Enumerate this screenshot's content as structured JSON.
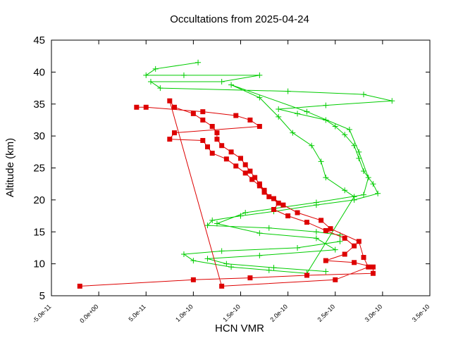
{
  "chart_data": {
    "type": "line",
    "title": "Occultations from 2025-04-24",
    "xlabel": "HCN VMR",
    "ylabel": "Altitude (km)",
    "xlim": [
      -5e-11,
      3.5e-10
    ],
    "ylim": [
      5,
      45
    ],
    "x_ticks": [
      -5e-11,
      0,
      5e-11,
      1e-10,
      1.5e-10,
      2e-10,
      2.5e-10,
      3e-10,
      3.5e-10
    ],
    "x_tick_labels": [
      "-5.0e-11",
      "0.0e+00",
      "5.0e-11",
      "1.0e-10",
      "1.5e-10",
      "2.0e-10",
      "2.5e-10",
      "3.0e-10",
      "3.5e-10"
    ],
    "y_ticks": [
      5,
      10,
      15,
      20,
      25,
      30,
      35,
      40,
      45
    ],
    "y_tick_labels": [
      "5",
      "10",
      "15",
      "20",
      "25",
      "30",
      "35",
      "40",
      "45"
    ],
    "grid": false,
    "legend": false,
    "colors": {
      "green": "#00cc00",
      "red": "#dd0000"
    },
    "series": [
      {
        "color": "#00cc00",
        "marker": "plus",
        "points": [
          [
            1.05e-10,
            41.5
          ],
          [
            6e-11,
            40.5
          ],
          [
            5e-11,
            39.5
          ],
          [
            9e-11,
            39.5
          ],
          [
            1.7e-10,
            39.5
          ],
          [
            1.3e-10,
            38.5
          ],
          [
            5.5e-11,
            38.5
          ],
          [
            6.5e-11,
            37.5
          ],
          [
            2e-10,
            37.0
          ],
          [
            2.8e-10,
            36.5
          ],
          [
            3.1e-10,
            35.5
          ],
          [
            2.4e-10,
            34.8
          ],
          [
            1.9e-10,
            34.2
          ],
          [
            2.1e-10,
            33.5
          ],
          [
            2.4e-10,
            32.5
          ],
          [
            2.5e-10,
            31.5
          ],
          [
            2.6e-10,
            30.2
          ],
          [
            2.7e-10,
            28.5
          ],
          [
            2.75e-10,
            26.5
          ],
          [
            2.8e-10,
            24.5
          ],
          [
            2.9e-10,
            22.5
          ],
          [
            2.95e-10,
            21.0
          ],
          [
            2.7e-10,
            20.0
          ],
          [
            2.3e-10,
            19.2
          ],
          [
            1.85e-10,
            18.2
          ],
          [
            1.5e-10,
            17.5
          ],
          [
            1.2e-10,
            16.8
          ],
          [
            1.15e-10,
            16.0
          ],
          [
            1.8e-10,
            15.6
          ],
          [
            2.3e-10,
            15.0
          ],
          [
            2.55e-10,
            14.5
          ],
          [
            2.55e-10,
            13.5
          ],
          [
            2.1e-10,
            12.5
          ],
          [
            1.3e-10,
            12.0
          ],
          [
            9e-11,
            11.5
          ],
          [
            1e-10,
            10.5
          ],
          [
            1.4e-10,
            9.5
          ],
          [
            1.8e-10,
            9.0
          ],
          [
            2.2e-10,
            8.5
          ],
          [
            2.7e-10,
            20.5
          ],
          [
            2.6e-10,
            21.5
          ],
          [
            2.4e-10,
            23.5
          ],
          [
            2.35e-10,
            26.0
          ],
          [
            2.25e-10,
            28.5
          ],
          [
            2.05e-10,
            30.5
          ],
          [
            1.9e-10,
            33.0
          ],
          [
            1.7e-10,
            36.0
          ],
          [
            1.4e-10,
            38.0
          ],
          [
            2.2e-10,
            33.8
          ],
          [
            2.65e-10,
            31.0
          ],
          [
            2.75e-10,
            27.5
          ],
          [
            2.85e-10,
            23.5
          ],
          [
            2.8e-10,
            20.8
          ],
          [
            2.3e-10,
            19.6
          ],
          [
            1.55e-10,
            18.0
          ],
          [
            1.25e-10,
            16.3
          ],
          [
            1.7e-10,
            14.8
          ],
          [
            2.3e-10,
            14.0
          ],
          [
            2.5e-10,
            12.2
          ],
          [
            1.7e-10,
            11.3
          ],
          [
            1.15e-10,
            10.8
          ],
          [
            1.35e-10,
            10.0
          ],
          [
            1.85e-10,
            9.4
          ],
          [
            2.4e-10,
            8.8
          ]
        ]
      },
      {
        "color": "#dd0000",
        "marker": "square",
        "points": [
          [
            -2e-11,
            6.5
          ],
          [
            1e-10,
            7.5
          ],
          [
            1.6e-10,
            7.8
          ],
          [
            2.2e-10,
            8.2
          ],
          [
            2.9e-10,
            8.5
          ],
          [
            2.9e-10,
            9.5
          ],
          [
            2.7e-10,
            10.2
          ],
          [
            2.4e-10,
            10.5
          ],
          [
            2.6e-10,
            11.5
          ],
          [
            2.7e-10,
            12.8
          ],
          [
            2.6e-10,
            14.0
          ],
          [
            2.4e-10,
            15.2
          ],
          [
            2.2e-10,
            16.5
          ],
          [
            2e-10,
            17.5
          ],
          [
            1.85e-10,
            18.5
          ],
          [
            1.9e-10,
            19.5
          ],
          [
            1.8e-10,
            20.5
          ],
          [
            1.75e-10,
            21.5
          ],
          [
            1.7e-10,
            22.5
          ],
          [
            1.65e-10,
            23.5
          ],
          [
            1.6e-10,
            24.5
          ],
          [
            1.55e-10,
            25.5
          ],
          [
            1.5e-10,
            26.5
          ],
          [
            1.4e-10,
            27.5
          ],
          [
            1.3e-10,
            28.5
          ],
          [
            1.25e-10,
            29.5
          ],
          [
            1.25e-10,
            30.5
          ],
          [
            1.2e-10,
            31.5
          ],
          [
            1.1e-10,
            32.5
          ],
          [
            1e-10,
            33.5
          ],
          [
            8e-11,
            34.5
          ],
          [
            7.5e-11,
            35.5
          ],
          [
            1.3e-10,
            6.5
          ],
          [
            2.5e-10,
            7.5
          ],
          [
            2.85e-10,
            9.5
          ],
          [
            2.8e-10,
            11.0
          ],
          [
            2.75e-10,
            13.5
          ],
          [
            2.45e-10,
            15.5
          ],
          [
            2.35e-10,
            16.8
          ],
          [
            2.1e-10,
            18.0
          ],
          [
            1.95e-10,
            19.2
          ],
          [
            1.85e-10,
            20.2
          ],
          [
            1.75e-10,
            21.2
          ],
          [
            1.7e-10,
            22.2
          ],
          [
            1.62e-10,
            23.2
          ],
          [
            1.55e-10,
            24.2
          ],
          [
            1.45e-10,
            25.3
          ],
          [
            1.35e-10,
            26.4
          ],
          [
            1.2e-10,
            27.3
          ],
          [
            1.15e-10,
            28.3
          ],
          [
            1.1e-10,
            29.3
          ],
          [
            7.5e-11,
            29.5
          ],
          [
            8e-11,
            30.5
          ],
          [
            1.7e-10,
            31.5
          ],
          [
            1.6e-10,
            32.5
          ],
          [
            1.45e-10,
            33.2
          ],
          [
            1.1e-10,
            33.8
          ],
          [
            5e-11,
            34.5
          ],
          [
            4e-11,
            34.5
          ]
        ]
      }
    ]
  }
}
